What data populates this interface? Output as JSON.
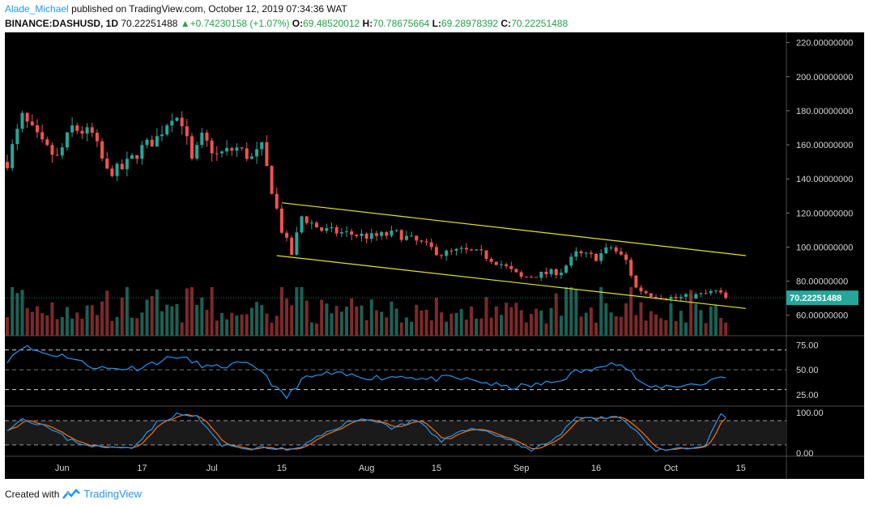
{
  "header": {
    "author": "Alade_Michael",
    "published_text": "published on TradingView.com, October 12, 2019 07:34:36 WAT",
    "symbol": "BINANCE:DASHUSD, 1D",
    "last": "70.22251488",
    "change": "+0.74230158 (+1.07%)",
    "open_label": "O:",
    "open": "69.48520012",
    "high_label": "H:",
    "high": "70.78675664",
    "low_label": "L:",
    "low": "69.28978392",
    "close_label": "C:",
    "close": "70.22251488"
  },
  "footer": {
    "created_with": "Created with",
    "brand": "TradingView"
  },
  "colors": {
    "background": "#000000",
    "bull": "#26a69a",
    "bear": "#ef5350",
    "volume_bull": "#1e6b5e",
    "volume_bear": "#8c2e2e",
    "channel": "#e5e51a",
    "rsi": "#2196f3",
    "stoch_k": "#2196f3",
    "stoch_d": "#ff6d00",
    "price_tag": "#26a69a"
  },
  "chart_data": [
    {
      "type": "candlestick",
      "x_axis": {
        "type": "date",
        "range": [
          "2019-05-21",
          "2019-10-23"
        ],
        "ticks": [
          {
            "date": "2019-06-01",
            "label": "Jun"
          },
          {
            "date": "2019-06-17",
            "label": "17"
          },
          {
            "date": "2019-07-01",
            "label": "Jul"
          },
          {
            "date": "2019-07-15",
            "label": "15"
          },
          {
            "date": "2019-08-01",
            "label": "Aug"
          },
          {
            "date": "2019-08-15",
            "label": "15"
          },
          {
            "date": "2019-09-01",
            "label": "Sep"
          },
          {
            "date": "2019-09-16",
            "label": "16"
          },
          {
            "date": "2019-10-01",
            "label": "Oct"
          },
          {
            "date": "2019-10-15",
            "label": "15"
          }
        ]
      },
      "y_axis": {
        "range": [
          48,
          226
        ],
        "ticks": [
          {
            "value": 220,
            "label": "220.00000000"
          },
          {
            "value": 200,
            "label": "200.00000000"
          },
          {
            "value": 180,
            "label": "180.00000000"
          },
          {
            "value": 160,
            "label": "160.00000000"
          },
          {
            "value": 140,
            "label": "140.00000000"
          },
          {
            "value": 120,
            "label": "120.00000000"
          },
          {
            "value": 100,
            "label": "100.00000000"
          },
          {
            "value": 80,
            "label": "80.00000000"
          },
          {
            "value": 60,
            "label": "60.00000000"
          }
        ]
      },
      "last_price_label": "70.22251488",
      "last_price": 70.22,
      "price_keypoints": [
        [
          "2019-05-21",
          150
        ],
        [
          "2019-05-24",
          176
        ],
        [
          "2019-05-28",
          160
        ],
        [
          "2019-05-31",
          152
        ],
        [
          "2019-06-03",
          170
        ],
        [
          "2019-06-07",
          166
        ],
        [
          "2019-06-10",
          144
        ],
        [
          "2019-06-13",
          146
        ],
        [
          "2019-06-17",
          158
        ],
        [
          "2019-06-20",
          164
        ],
        [
          "2019-06-23",
          178
        ],
        [
          "2019-06-25",
          174
        ],
        [
          "2019-06-27",
          150
        ],
        [
          "2019-06-29",
          164
        ],
        [
          "2019-07-02",
          154
        ],
        [
          "2019-07-06",
          158
        ],
        [
          "2019-07-09",
          152
        ],
        [
          "2019-07-11",
          158
        ],
        [
          "2019-07-14",
          122
        ],
        [
          "2019-07-15",
          110
        ],
        [
          "2019-07-17",
          96
        ],
        [
          "2019-07-19",
          118
        ],
        [
          "2019-07-23",
          110
        ],
        [
          "2019-07-28",
          108
        ],
        [
          "2019-08-02",
          106
        ],
        [
          "2019-08-07",
          108
        ],
        [
          "2019-08-12",
          102
        ],
        [
          "2019-08-16",
          96
        ],
        [
          "2019-08-20",
          98
        ],
        [
          "2019-08-24",
          96
        ],
        [
          "2019-08-28",
          90
        ],
        [
          "2019-09-01",
          82
        ],
        [
          "2019-09-05",
          84
        ],
        [
          "2019-09-09",
          86
        ],
        [
          "2019-09-12",
          96
        ],
        [
          "2019-09-16",
          94
        ],
        [
          "2019-09-19",
          100
        ],
        [
          "2019-09-22",
          92
        ],
        [
          "2019-09-24",
          76
        ],
        [
          "2019-09-27",
          72
        ],
        [
          "2019-10-02",
          70
        ],
        [
          "2019-10-07",
          72
        ],
        [
          "2019-10-10",
          74
        ],
        [
          "2019-10-12",
          70.22
        ]
      ],
      "channel_upper": [
        [
          "2019-07-15",
          126
        ],
        [
          "2019-10-16",
          95
        ]
      ],
      "channel_lower": [
        [
          "2019-07-14",
          95
        ],
        [
          "2019-10-16",
          64
        ]
      ]
    },
    {
      "type": "line",
      "name": "RSI",
      "y_axis": {
        "range": [
          15,
          82
        ],
        "ticks": [
          {
            "value": 75,
            "label": "75.00"
          },
          {
            "value": 50,
            "label": "50.00"
          },
          {
            "value": 25,
            "label": "25.00"
          }
        ]
      },
      "bands": [
        70,
        50,
        30
      ],
      "keypoints": [
        [
          "2019-05-21",
          60
        ],
        [
          "2019-05-24",
          74
        ],
        [
          "2019-05-29",
          66
        ],
        [
          "2019-06-02",
          64
        ],
        [
          "2019-06-06",
          55
        ],
        [
          "2019-06-10",
          51
        ],
        [
          "2019-06-16",
          52
        ],
        [
          "2019-06-20",
          58
        ],
        [
          "2019-06-24",
          64
        ],
        [
          "2019-06-27",
          58
        ],
        [
          "2019-07-01",
          52
        ],
        [
          "2019-07-07",
          56
        ],
        [
          "2019-07-11",
          50
        ],
        [
          "2019-07-14",
          30
        ],
        [
          "2019-07-16",
          22
        ],
        [
          "2019-07-19",
          40
        ],
        [
          "2019-07-24",
          46
        ],
        [
          "2019-07-29",
          44
        ],
        [
          "2019-08-04",
          42
        ],
        [
          "2019-08-09",
          44
        ],
        [
          "2019-08-13",
          40
        ],
        [
          "2019-08-18",
          42
        ],
        [
          "2019-08-24",
          38
        ],
        [
          "2019-08-29",
          32
        ],
        [
          "2019-09-03",
          34
        ],
        [
          "2019-09-08",
          38
        ],
        [
          "2019-09-12",
          48
        ],
        [
          "2019-09-16",
          50
        ],
        [
          "2019-09-19",
          60
        ],
        [
          "2019-09-22",
          52
        ],
        [
          "2019-09-26",
          32
        ],
        [
          "2019-10-02",
          34
        ],
        [
          "2019-10-08",
          36
        ],
        [
          "2019-10-10",
          44
        ],
        [
          "2019-10-12",
          40
        ]
      ]
    },
    {
      "type": "line",
      "name": "Stochastic",
      "y_axis": {
        "range": [
          -8,
          110
        ],
        "ticks": [
          {
            "value": 100,
            "label": "100.00"
          },
          {
            "value": 0,
            "label": "0.00"
          }
        ]
      },
      "bands": [
        80,
        20
      ],
      "keypoints_k": [
        [
          "2019-05-21",
          60
        ],
        [
          "2019-05-24",
          85
        ],
        [
          "2019-05-28",
          70
        ],
        [
          "2019-06-02",
          35
        ],
        [
          "2019-06-06",
          20
        ],
        [
          "2019-06-10",
          12
        ],
        [
          "2019-06-15",
          15
        ],
        [
          "2019-06-20",
          75
        ],
        [
          "2019-06-24",
          95
        ],
        [
          "2019-06-28",
          90
        ],
        [
          "2019-07-03",
          18
        ],
        [
          "2019-07-08",
          12
        ],
        [
          "2019-07-13",
          12
        ],
        [
          "2019-07-18",
          8
        ],
        [
          "2019-07-23",
          45
        ],
        [
          "2019-07-28",
          75
        ],
        [
          "2019-08-02",
          85
        ],
        [
          "2019-08-06",
          62
        ],
        [
          "2019-08-11",
          82
        ],
        [
          "2019-08-16",
          25
        ],
        [
          "2019-08-20",
          60
        ],
        [
          "2019-08-25",
          55
        ],
        [
          "2019-08-30",
          30
        ],
        [
          "2019-09-03",
          8
        ],
        [
          "2019-09-08",
          35
        ],
        [
          "2019-09-12",
          90
        ],
        [
          "2019-09-16",
          82
        ],
        [
          "2019-09-20",
          95
        ],
        [
          "2019-09-24",
          55
        ],
        [
          "2019-09-28",
          5
        ],
        [
          "2019-10-04",
          10
        ],
        [
          "2019-10-08",
          18
        ],
        [
          "2019-10-11",
          98
        ],
        [
          "2019-10-13",
          75
        ]
      ]
    }
  ]
}
